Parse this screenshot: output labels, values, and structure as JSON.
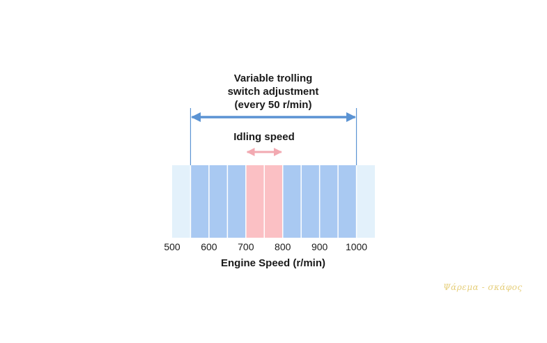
{
  "diagram": {
    "top_label_lines": [
      "Variable trolling",
      "switch adjustment",
      "(every 50 r/min)"
    ],
    "idle_label": "Idling speed",
    "axis_label": "Engine Speed (r/min)",
    "ticks": [
      500,
      600,
      700,
      800,
      900,
      1000
    ],
    "range": {
      "min": 500,
      "max": 1050
    },
    "adjust_range": [
      550,
      1000
    ],
    "idle_range": [
      700,
      800
    ],
    "step": 50,
    "colors": {
      "outer_band": "#e3f1fb",
      "adjust_band": "#a9c9f2",
      "idle_band": "#fbc0c4",
      "adjust_arrow": "#5b93d3",
      "idle_arrow": "#f2a9b1",
      "divider": "#ffffff"
    }
  },
  "watermark": "Ψάρεμα - σκάφος"
}
